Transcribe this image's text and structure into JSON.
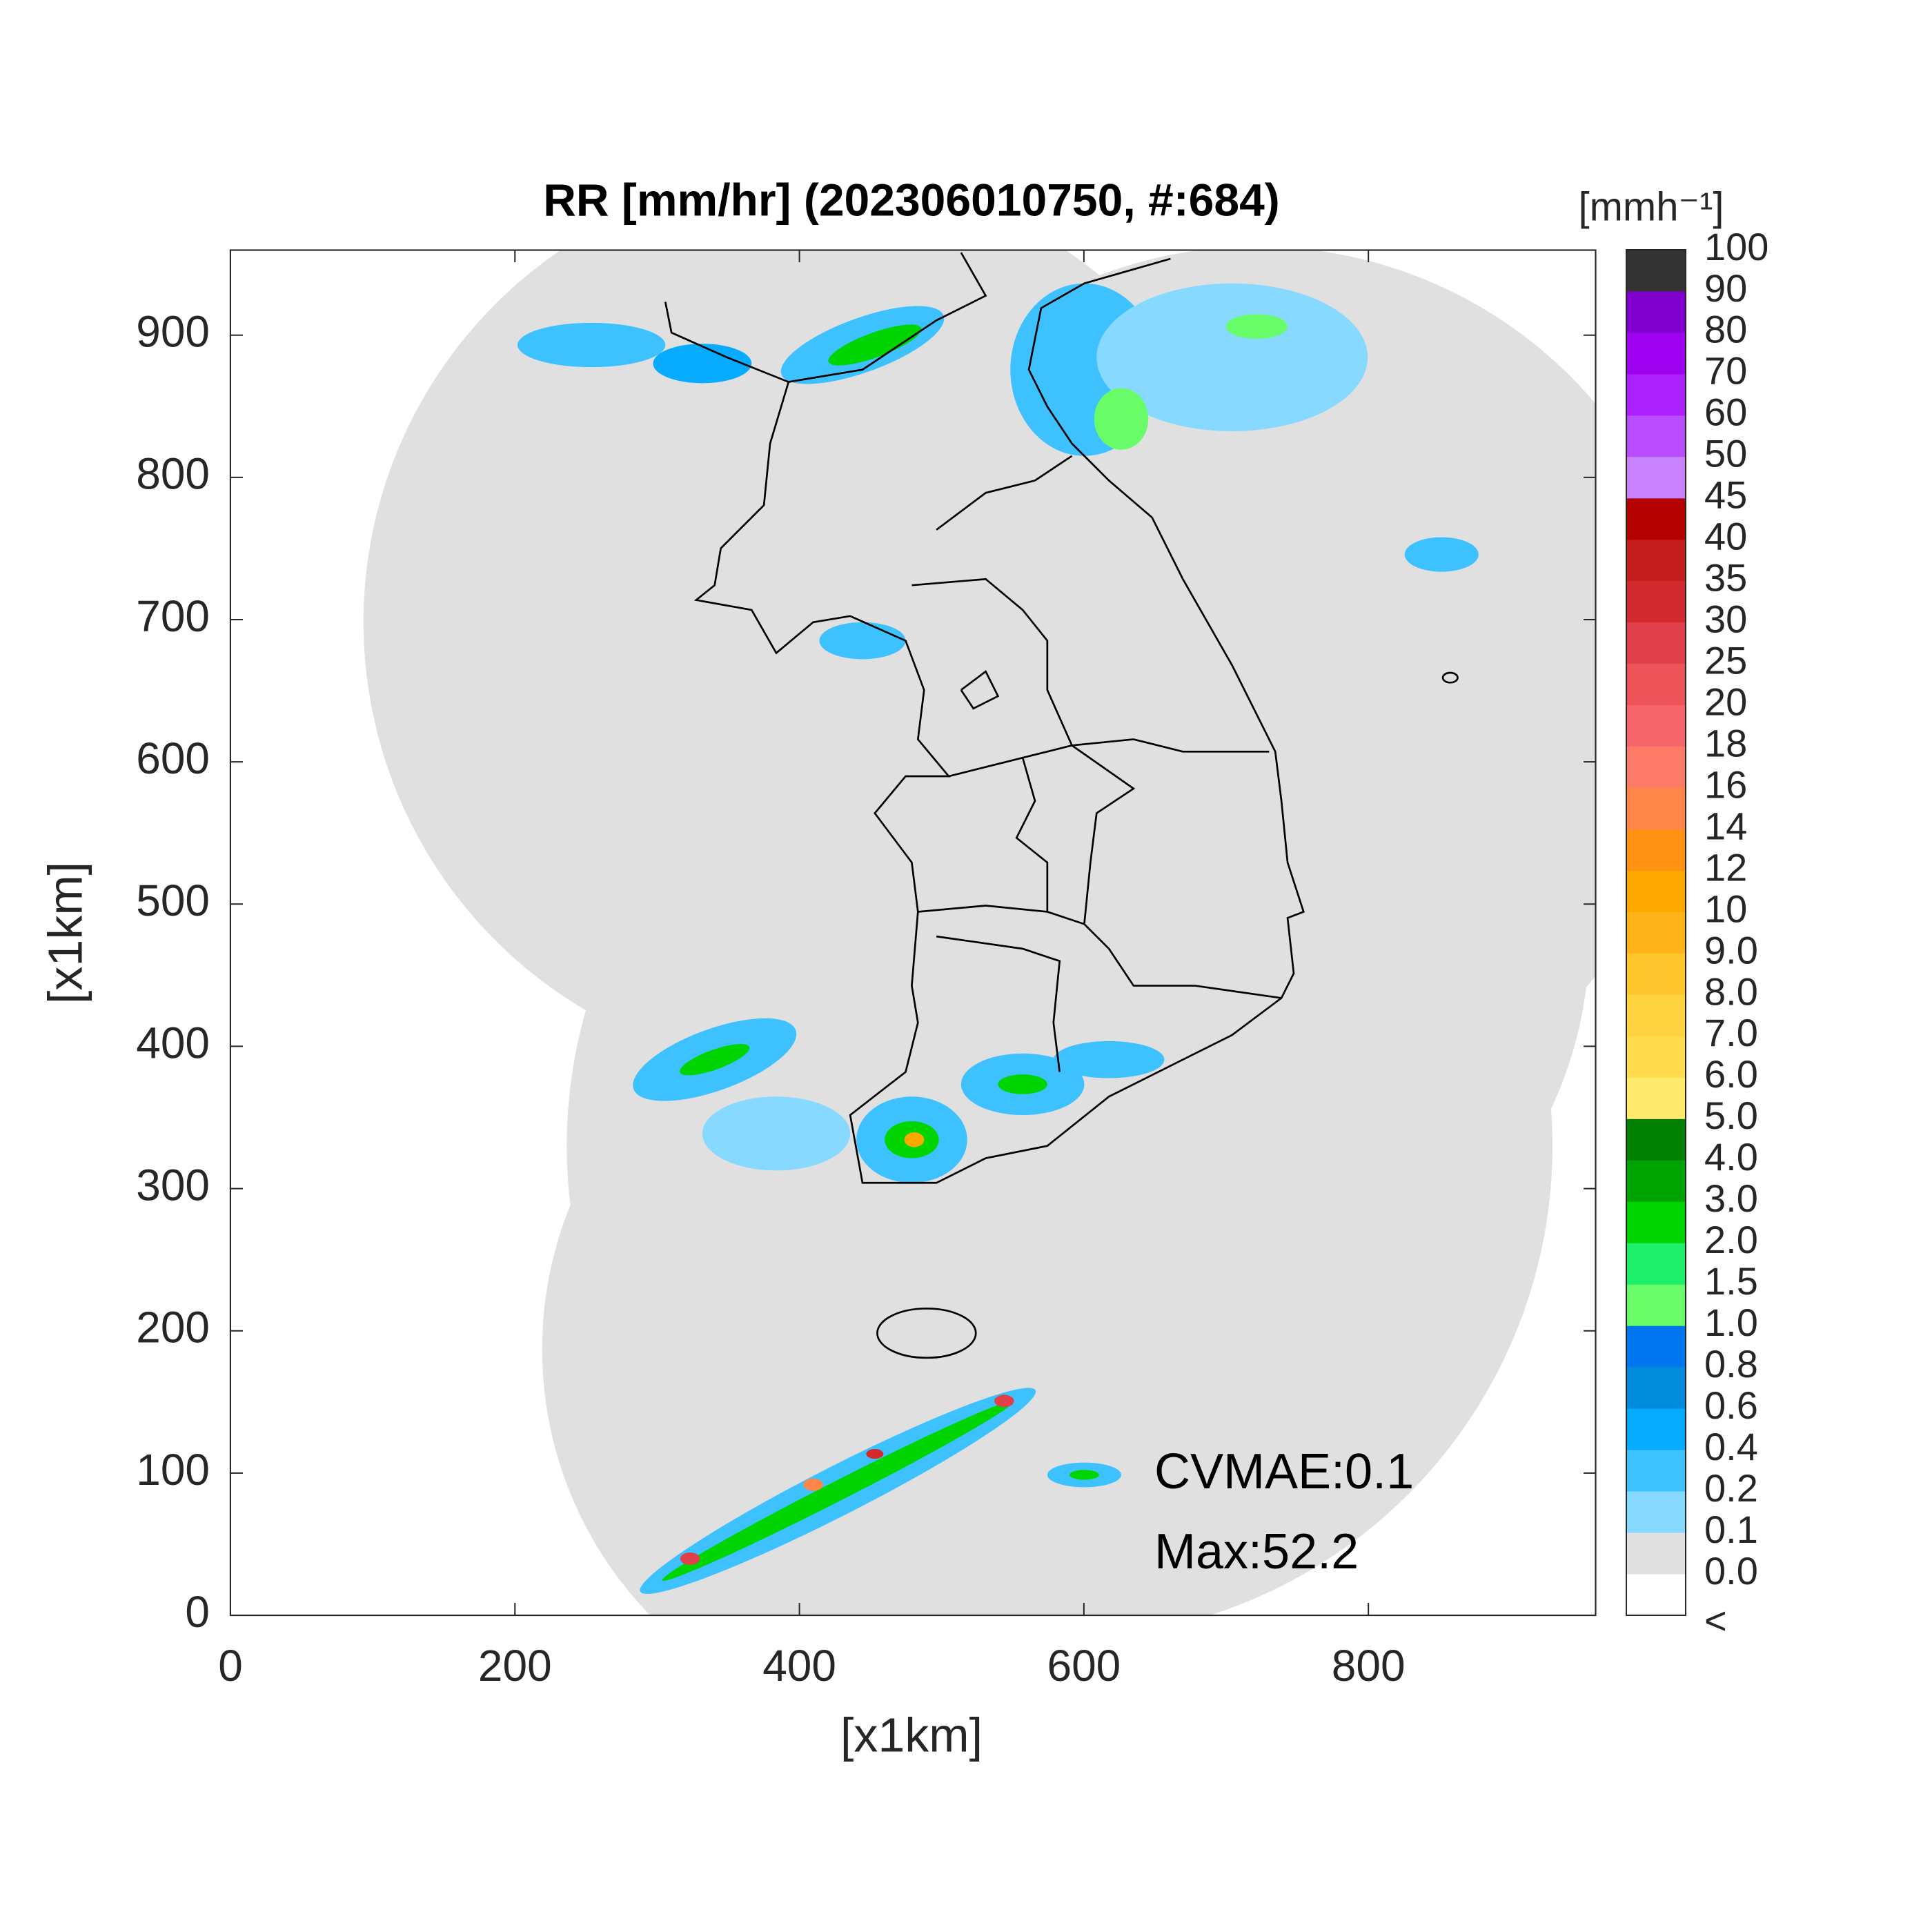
{
  "chart_data": {
    "type": "radar-map",
    "title": "RR [mm/hr] (202306010750, #:684)",
    "xlabel": "[x1km]",
    "ylabel": "[x1km]",
    "xlim": [
      0,
      960
    ],
    "ylim": [
      0,
      960
    ],
    "xticks": [
      0,
      200,
      400,
      600,
      800
    ],
    "yticks": [
      0,
      100,
      200,
      300,
      400,
      500,
      600,
      700,
      800,
      900
    ],
    "annotations": [
      "CVMAE:0.1",
      "Max:52.2"
    ],
    "colorbar": {
      "label": "[mmh⁻¹]",
      "labels": [
        "<",
        "0.0",
        "0.1",
        "0.2",
        "0.4",
        "0.6",
        "0.8",
        "1.0",
        "1.5",
        "2.0",
        "3.0",
        "4.0",
        "5.0",
        "6.0",
        "7.0",
        "8.0",
        "9.0",
        "10",
        "12",
        "14",
        "16",
        "18",
        "20",
        "25",
        "30",
        "35",
        "40",
        "45",
        "50",
        "60",
        "70",
        "80",
        "90",
        "100"
      ],
      "colors": [
        "#ffffff",
        "#e0e0e0",
        "#87d9ff",
        "#3ec1ff",
        "#07abff",
        "#008dde",
        "#0077f0",
        "#69fc69",
        "#1ef06a",
        "#00d500",
        "#00a400",
        "#008000",
        "#ffea6e",
        "#ffdc4c",
        "#ffd23f",
        "#ffc62d",
        "#ffb41a",
        "#ffa800",
        "#ff9113",
        "#ff8646",
        "#ff7b68",
        "#f66569",
        "#ed5459",
        "#e1404a",
        "#d22a2e",
        "#c51d1d",
        "#b50000",
        "#c983ff",
        "#b84dff",
        "#ac1fff",
        "#9e00f0",
        "#8000d0",
        "#333333"
      ]
    }
  }
}
